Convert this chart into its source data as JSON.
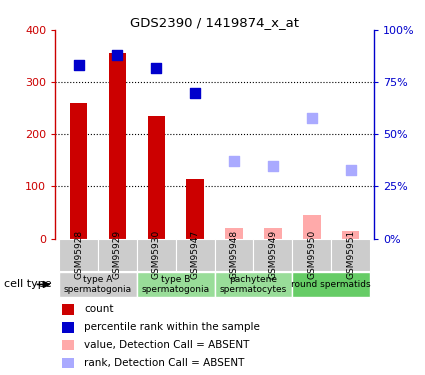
{
  "title": "GDS2390 / 1419874_x_at",
  "samples": [
    "GSM95928",
    "GSM95929",
    "GSM95930",
    "GSM95947",
    "GSM95948",
    "GSM95949",
    "GSM95950",
    "GSM95951"
  ],
  "count_present": [
    260,
    355,
    235,
    115,
    null,
    null,
    null,
    null
  ],
  "count_absent": [
    null,
    null,
    null,
    null,
    20,
    20,
    45,
    15
  ],
  "rank_present": [
    83,
    88,
    82,
    70,
    null,
    null,
    null,
    null
  ],
  "rank_absent": [
    null,
    null,
    null,
    null,
    37,
    35,
    58,
    33
  ],
  "bar_color_present": "#cc0000",
  "bar_color_absent": "#ffaaaa",
  "dot_color_present": "#0000cc",
  "dot_color_absent": "#aaaaff",
  "ylim_left": [
    0,
    400
  ],
  "ylim_right": [
    0,
    100
  ],
  "yticks_left": [
    0,
    100,
    200,
    300,
    400
  ],
  "yticks_right": [
    0,
    25,
    50,
    75,
    100
  ],
  "yticklabels_right": [
    "0%",
    "25%",
    "50%",
    "75%",
    "100%"
  ],
  "cell_groups": [
    {
      "label": "type A\nspermatogonia",
      "start": 0,
      "end": 1,
      "color": "#cccccc"
    },
    {
      "label": "type B\nspermatogonia",
      "start": 2,
      "end": 3,
      "color": "#99dd99"
    },
    {
      "label": "pachytene\nspermatocytes",
      "start": 4,
      "end": 5,
      "color": "#99dd99"
    },
    {
      "label": "round spermatids",
      "start": 6,
      "end": 7,
      "color": "#66cc66"
    }
  ],
  "legend_items": [
    {
      "label": "count",
      "color": "#cc0000",
      "type": "square"
    },
    {
      "label": "percentile rank within the sample",
      "color": "#0000cc",
      "type": "square"
    },
    {
      "label": "value, Detection Call = ABSENT",
      "color": "#ffaaaa",
      "type": "square"
    },
    {
      "label": "rank, Detection Call = ABSENT",
      "color": "#aaaaff",
      "type": "square"
    }
  ],
  "cell_type_label": "cell type",
  "background_color": "#ffffff",
  "bar_width": 0.45,
  "grid_dotted_at": [
    100,
    200,
    300
  ]
}
